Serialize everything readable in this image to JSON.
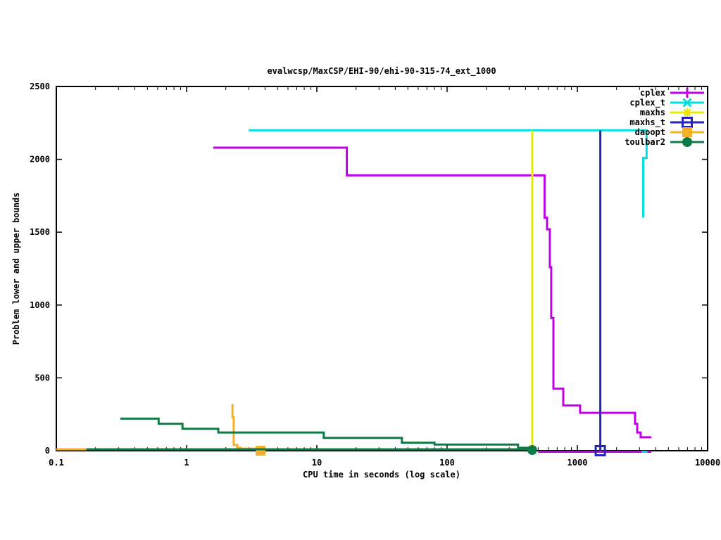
{
  "page": {
    "background": "#ffffff"
  },
  "chart_data": {
    "type": "line",
    "title": "evalwcsp/MaxCSP/EHI-90/ehi-90-315-74_ext_1000",
    "xlabel": "CPU time in seconds (log scale)",
    "ylabel": "Problem lower and upper bounds",
    "x_scale": "log",
    "xlim": [
      0.1,
      10000
    ],
    "ylim": [
      0,
      2500
    ],
    "grid": false,
    "legend_position": "top-right-inside",
    "x_ticks": [
      {
        "v": 0.1,
        "label": "0.1"
      },
      {
        "v": 1,
        "label": "1"
      },
      {
        "v": 10,
        "label": "10"
      },
      {
        "v": 100,
        "label": "100"
      },
      {
        "v": 1000,
        "label": "1000"
      },
      {
        "v": 10000,
        "label": "10000"
      }
    ],
    "y_ticks": [
      {
        "v": 0,
        "label": "0"
      },
      {
        "v": 500,
        "label": "500"
      },
      {
        "v": 1000,
        "label": "1000"
      },
      {
        "v": 1500,
        "label": "1500"
      },
      {
        "v": 2000,
        "label": "2000"
      },
      {
        "v": 2500,
        "label": "2500"
      }
    ],
    "series": [
      {
        "name": "cplex",
        "color": "#bf00e8",
        "marker": "plus",
        "lines": [
          {
            "kind": "upper",
            "points": [
              [
                1.6,
                2080
              ],
              [
                17,
                2080
              ],
              [
                17,
                1890
              ],
              [
                560,
                1890
              ],
              [
                560,
                1600
              ],
              [
                585,
                1600
              ],
              [
                585,
                1520
              ],
              [
                615,
                1520
              ],
              [
                615,
                1260
              ],
              [
                630,
                1260
              ],
              [
                630,
                910
              ],
              [
                655,
                910
              ],
              [
                655,
                425
              ],
              [
                780,
                425
              ],
              [
                780,
                310
              ],
              [
                1050,
                310
              ],
              [
                1050,
                260
              ],
              [
                2770,
                260
              ],
              [
                2770,
                185
              ],
              [
                2880,
                185
              ],
              [
                2880,
                125
              ],
              [
                3060,
                125
              ],
              [
                3060,
                92
              ],
              [
                3700,
                92
              ]
            ]
          },
          {
            "kind": "lower",
            "dy": 1.5,
            "points": [
              [
                500,
                0
              ],
              [
                3700,
                0
              ]
            ]
          }
        ],
        "end_markers": []
      },
      {
        "name": "cplex_t",
        "color": "#00e0e0",
        "marker": "cross",
        "lines": [
          {
            "kind": "upper",
            "points": [
              [
                3,
                2200
              ],
              [
                3400,
                2200
              ],
              [
                3400,
                2010
              ],
              [
                3200,
                2010
              ],
              [
                3200,
                1600
              ]
            ]
          },
          {
            "kind": "lower",
            "dy": 1.5,
            "points": [
              [
                3100,
                0
              ],
              [
                3450,
                0
              ]
            ]
          }
        ],
        "end_markers": []
      },
      {
        "name": "maxhs",
        "color": "#e8e800",
        "marker": "asterisk",
        "lines": [
          {
            "kind": "upper",
            "points": [
              [
                451,
                2200
              ],
              [
                451,
                0
              ]
            ]
          }
        ],
        "end_markers": []
      },
      {
        "name": "maxhs_t",
        "color": "#2525b8",
        "marker": "open-square",
        "lines": [
          {
            "kind": "upper",
            "points": [
              [
                1500,
                2200
              ],
              [
                1500,
                0
              ]
            ]
          }
        ],
        "end_markers": [
          {
            "t": 1500,
            "v": 0,
            "marker": "open-square"
          }
        ]
      },
      {
        "name": "daoopt",
        "color": "#f5b028",
        "marker": "filled-square",
        "lines": [
          {
            "kind": "upper",
            "points": [
              [
                2.25,
                320
              ],
              [
                2.25,
                230
              ],
              [
                2.3,
                230
              ],
              [
                2.3,
                40
              ],
              [
                2.45,
                40
              ],
              [
                2.45,
                20
              ],
              [
                2.6,
                20
              ],
              [
                2.6,
                14
              ],
              [
                3.7,
                14
              ]
            ]
          },
          {
            "kind": "lower",
            "dy": -2,
            "points": [
              [
                0.1,
                0
              ],
              [
                3.7,
                0
              ]
            ]
          }
        ],
        "end_markers": [
          {
            "t": 3.7,
            "v": 0,
            "marker": "filled-square"
          }
        ]
      },
      {
        "name": "toulbar2",
        "color": "#0e7a45",
        "marker": "filled-circle",
        "lines": [
          {
            "kind": "upper",
            "points": [
              [
                0.31,
                220
              ],
              [
                0.61,
                220
              ],
              [
                0.61,
                185
              ],
              [
                0.93,
                185
              ],
              [
                0.93,
                150
              ],
              [
                1.75,
                150
              ],
              [
                1.75,
                125
              ],
              [
                11.3,
                125
              ],
              [
                11.3,
                88
              ],
              [
                45,
                88
              ],
              [
                45,
                55
              ],
              [
                80,
                55
              ],
              [
                80,
                42
              ],
              [
                350,
                42
              ],
              [
                350,
                20
              ],
              [
                450,
                20
              ],
              [
                450,
                0
              ]
            ]
          },
          {
            "kind": "lower",
            "dy": -2,
            "points": [
              [
                0.17,
                0
              ],
              [
                450,
                0
              ]
            ]
          }
        ],
        "end_markers": [
          {
            "t": 450,
            "v": 0,
            "dy": -1,
            "marker": "filled-circle"
          }
        ]
      }
    ]
  }
}
